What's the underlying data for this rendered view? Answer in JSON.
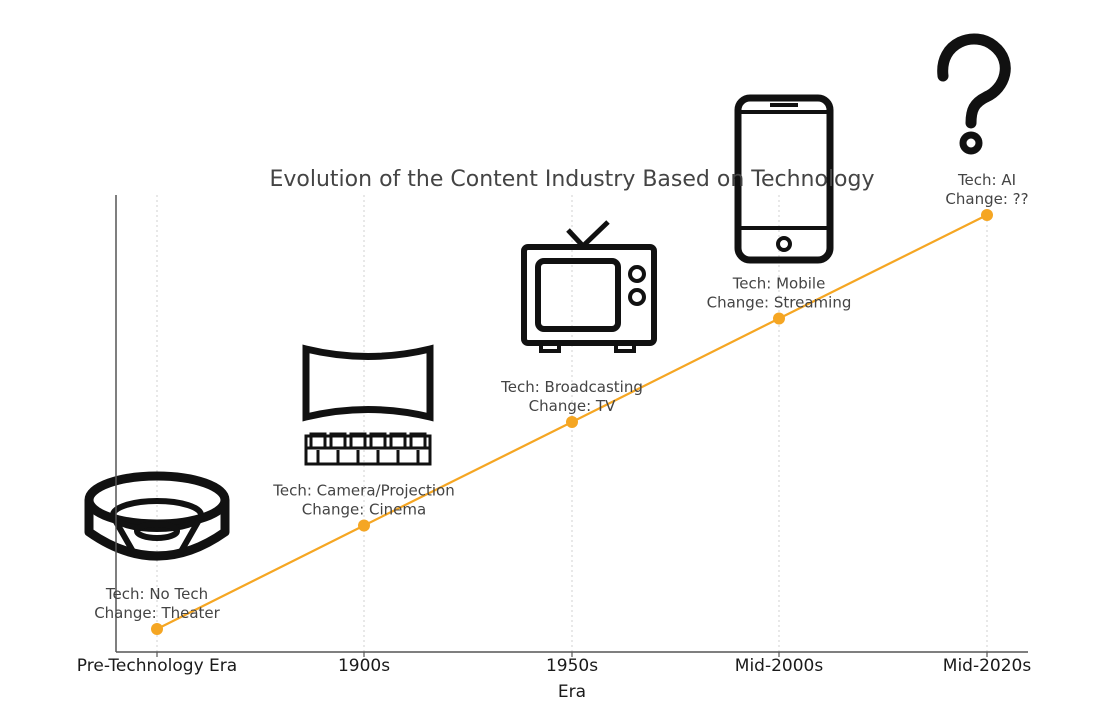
{
  "chart_data": {
    "type": "line",
    "title": "Evolution of the Content Industry Based on Technology",
    "xlabel": "Era",
    "ylabel": "",
    "categories": [
      "Pre-Technology Era",
      "1900s",
      "1950s",
      "Mid-2000s",
      "Mid-2020s"
    ],
    "values": [
      1,
      2,
      3,
      4,
      5
    ],
    "ylim": [
      0.7,
      5.3
    ],
    "grid": "vertical dotted",
    "annotations": [
      {
        "tech": "Tech: No Tech",
        "change": "Change: Theater",
        "icon": "theater-icon"
      },
      {
        "tech": "Tech: Camera/Projection",
        "change": "Change: Cinema",
        "icon": "cinema-icon"
      },
      {
        "tech": "Tech: Broadcasting",
        "change": "Change: TV",
        "icon": "tv-icon"
      },
      {
        "tech": "Tech: Mobile",
        "change": "Change: Streaming",
        "icon": "smartphone-icon"
      },
      {
        "tech": "Tech: AI",
        "change": "Change: ??",
        "icon": "question-mark-icon"
      }
    ],
    "colors": {
      "line": "#F5A623",
      "marker": "#F5A623",
      "axis": "#555555",
      "grid": "#d0d0d0",
      "icon": "#111111"
    }
  }
}
